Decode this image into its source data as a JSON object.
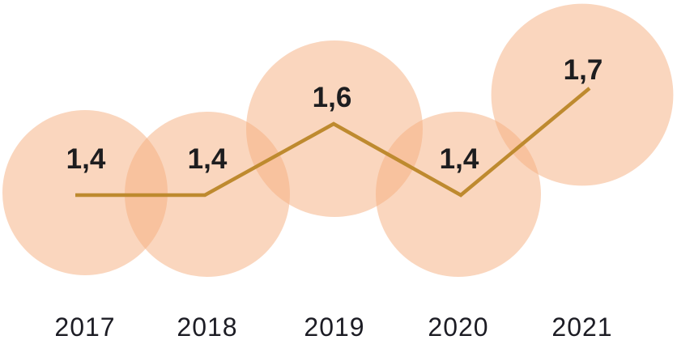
{
  "chart_data": {
    "type": "line",
    "subtype": "line-with-proportional-bubbles",
    "title": "",
    "xlabel": "",
    "ylabel": "",
    "categories": [
      "2017",
      "2018",
      "2019",
      "2020",
      "2021"
    ],
    "values": [
      1.4,
      1.4,
      1.6,
      1.4,
      1.7
    ],
    "value_labels": [
      "1,4",
      "1,4",
      "1,6",
      "1,4",
      "1,7"
    ],
    "decimal_style": "comma",
    "ylim": [
      1.0,
      2.0
    ],
    "grid": false,
    "legend": "none",
    "axes_visible": false,
    "bubble_area_proportional_to_value": true,
    "colors": {
      "background": "#FFFFFF",
      "bubble_fill": "#F5AD7D",
      "bubble_opacity": 0.5,
      "bubble_single_appearance": "#FAD6BE",
      "bubble_overlap_appearance": "#F8C29E",
      "line": "#BE8A2F",
      "value_label_text": "#1D1D1F",
      "axis_label_text": "#1C1C24"
    }
  }
}
